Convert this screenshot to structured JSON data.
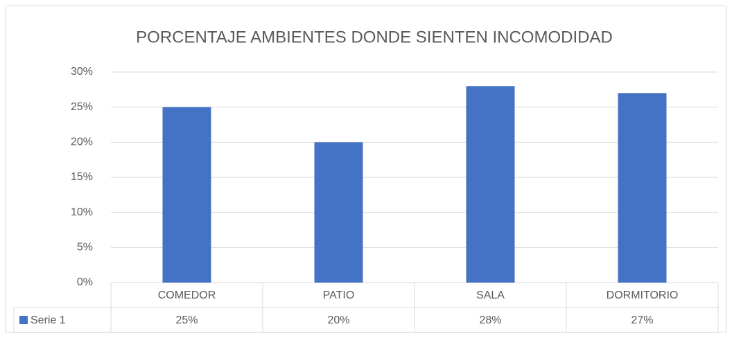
{
  "chart_data": {
    "type": "bar",
    "title": "PORCENTAJE AMBIENTES DONDE SIENTEN INCOMODIDAD",
    "categories": [
      "COMEDOR",
      "PATIO",
      "SALA",
      "DORMITORIO"
    ],
    "series": [
      {
        "name": "Serie 1",
        "color": "#4472c4",
        "values": [
          25,
          20,
          28,
          27
        ],
        "value_labels": [
          "25%",
          "20%",
          "28%",
          "27%"
        ]
      }
    ],
    "ylim": [
      0,
      30
    ],
    "yticks": [
      {
        "value": 0,
        "label": "0%"
      },
      {
        "value": 5,
        "label": "5%"
      },
      {
        "value": 10,
        "label": "10%"
      },
      {
        "value": 15,
        "label": "15%"
      },
      {
        "value": 20,
        "label": "20%"
      },
      {
        "value": 25,
        "label": "25%"
      },
      {
        "value": 30,
        "label": "30%"
      }
    ],
    "grid": true,
    "data_table": true
  }
}
